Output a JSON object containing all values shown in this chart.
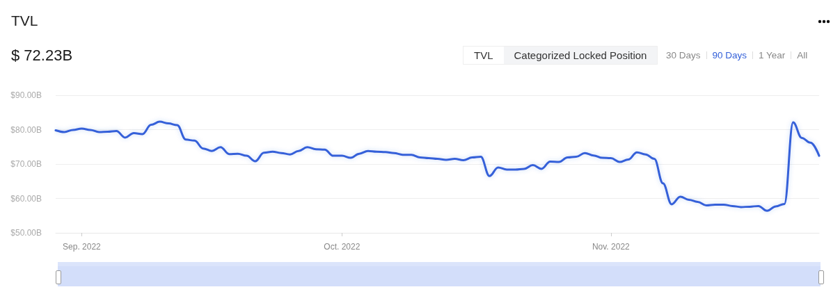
{
  "chart_data": {
    "type": "line",
    "title": "TVL",
    "subtitle": "$ 72.23B",
    "annotations": [
      "TVL",
      "Categorized Locked Position",
      "30 Days",
      "90 Days",
      "1 Year",
      "All"
    ],
    "x": [
      "2022-08-29",
      "2022-08-30",
      "2022-08-31",
      "2022-09-01",
      "2022-09-02",
      "2022-09-03",
      "2022-09-04",
      "2022-09-05",
      "2022-09-06",
      "2022-09-07",
      "2022-09-08",
      "2022-09-09",
      "2022-09-10",
      "2022-09-11",
      "2022-09-12",
      "2022-09-13",
      "2022-09-14",
      "2022-09-15",
      "2022-09-16",
      "2022-09-17",
      "2022-09-18",
      "2022-09-19",
      "2022-09-20",
      "2022-09-21",
      "2022-09-22",
      "2022-09-23",
      "2022-09-24",
      "2022-09-25",
      "2022-09-26",
      "2022-09-27",
      "2022-09-28",
      "2022-09-29",
      "2022-09-30",
      "2022-10-01",
      "2022-10-02",
      "2022-10-03",
      "2022-10-04",
      "2022-10-05",
      "2022-10-06",
      "2022-10-07",
      "2022-10-08",
      "2022-10-09",
      "2022-10-10",
      "2022-10-11",
      "2022-10-12",
      "2022-10-13",
      "2022-10-14",
      "2022-10-15",
      "2022-10-16",
      "2022-10-17",
      "2022-10-18",
      "2022-10-19",
      "2022-10-20",
      "2022-10-21",
      "2022-10-22",
      "2022-10-23",
      "2022-10-24",
      "2022-10-25",
      "2022-10-26",
      "2022-10-27",
      "2022-10-28",
      "2022-10-29",
      "2022-10-30",
      "2022-10-31",
      "2022-11-01",
      "2022-11-02",
      "2022-11-03",
      "2022-11-04",
      "2022-11-05",
      "2022-11-06",
      "2022-11-07",
      "2022-11-08",
      "2022-11-09",
      "2022-11-10",
      "2022-11-11",
      "2022-11-12",
      "2022-11-13",
      "2022-11-14",
      "2022-11-15",
      "2022-11-16",
      "2022-11-17",
      "2022-11-18",
      "2022-11-19",
      "2022-11-20",
      "2022-11-21",
      "2022-11-22",
      "2022-11-23",
      "2022-11-24",
      "2022-11-25"
    ],
    "series": [
      {
        "color": "#3461d9",
        "values": [
          79.8,
          79.3,
          79.9,
          80.3,
          79.9,
          79.3,
          79.4,
          79.6,
          77.7,
          79.0,
          78.7,
          81.4,
          82.3,
          81.8,
          81.3,
          77.1,
          76.8,
          74.5,
          73.8,
          74.9,
          72.9,
          73.0,
          72.4,
          70.8,
          73.3,
          73.6,
          73.2,
          72.8,
          73.8,
          74.9,
          74.3,
          74.2,
          72.4,
          72.4,
          71.8,
          73.0,
          73.8,
          73.6,
          73.5,
          73.2,
          72.7,
          72.7,
          71.9,
          71.7,
          71.5,
          71.2,
          71.5,
          71.1,
          71.9,
          72.1,
          66.5,
          69.0,
          68.4,
          68.4,
          68.6,
          69.7,
          68.6,
          70.7,
          70.6,
          71.9,
          72.1,
          73.2,
          72.5,
          71.8,
          71.7,
          70.6,
          71.3,
          73.4,
          72.8,
          71.5,
          64.4,
          58.3,
          60.5,
          59.6,
          59.0,
          58.0,
          58.2,
          58.2,
          57.8,
          57.5,
          57.6,
          57.8,
          56.4,
          57.7,
          58.4,
          82.1,
          77.6,
          76.2,
          72.4
        ]
      }
    ],
    "xlim": [
      "2022-08-29",
      "2022-11-25"
    ],
    "xticks": [
      {
        "value": "2022-09-01",
        "label": "Sep. 2022"
      },
      {
        "value": "2022-10-01",
        "label": "Oct. 2022"
      },
      {
        "value": "2022-11-01",
        "label": "Nov. 2022"
      }
    ],
    "ylim": [
      50,
      90
    ],
    "yticks": [
      {
        "value": 50,
        "label": "$50.00B"
      },
      {
        "value": 60,
        "label": "$60.00B"
      },
      {
        "value": 70,
        "label": "$70.00B"
      },
      {
        "value": 80,
        "label": "$80.00B"
      },
      {
        "value": 90,
        "label": "$90.00B"
      }
    ],
    "grid": "y",
    "marker": "none",
    "line_style": "solid"
  }
}
